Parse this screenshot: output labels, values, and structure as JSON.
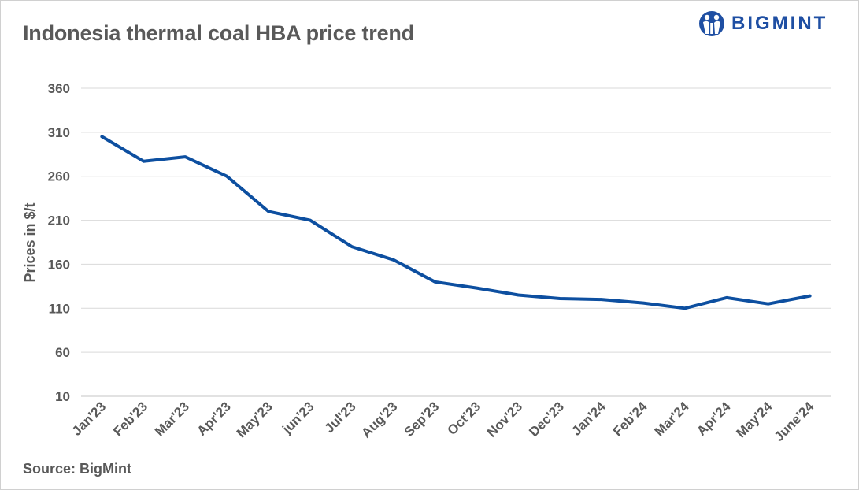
{
  "header": {
    "title": "Indonesia thermal coal HBA price trend",
    "logo_text": "BIGMINT"
  },
  "footer": {
    "source": "Source: BigMint"
  },
  "colors": {
    "line": "#0d4fa0",
    "grid": "#d9d9d9",
    "text": "#595959",
    "brand": "#1f4fa3"
  },
  "chart_data": {
    "type": "line",
    "title": "Indonesia thermal coal HBA price trend",
    "xlabel": "",
    "ylabel": "Prices in $/t",
    "ylim": [
      10,
      360
    ],
    "yticks": [
      10,
      60,
      110,
      160,
      210,
      260,
      310,
      360
    ],
    "categories": [
      "Jan'23",
      "Feb'23",
      "Mar'23",
      "Apr'23",
      "May'23",
      "jun'23",
      "Jul'23",
      "Aug'23",
      "Sep'23",
      "Oct'23",
      "Nov'23",
      "Dec'23",
      "Jan'24",
      "Feb'24",
      "Mar'24",
      "Apr'24",
      "May'24",
      "June'24"
    ],
    "series": [
      {
        "name": "HBA price",
        "values": [
          305,
          277,
          282,
          260,
          220,
          210,
          180,
          165,
          140,
          133,
          125,
          121,
          120,
          116,
          110,
          122,
          115,
          124
        ]
      }
    ],
    "grid": true,
    "legend": "none"
  }
}
